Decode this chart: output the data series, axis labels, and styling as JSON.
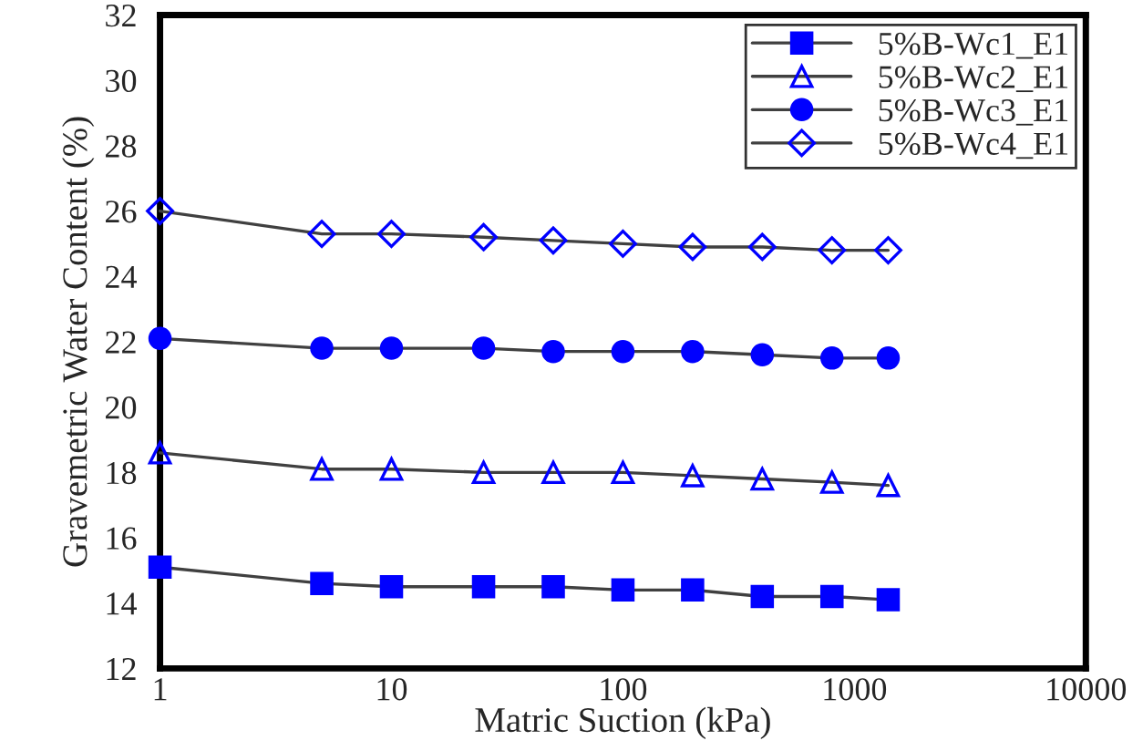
{
  "chart_data": {
    "type": "line",
    "xlabel": "Matric Suction (kPa)",
    "ylabel": "Gravemetric Water Content (%)",
    "log": "x",
    "xlim": [
      1,
      10000
    ],
    "xticks": [
      1,
      10,
      100,
      1000,
      10000
    ],
    "ylim": [
      12,
      32
    ],
    "yticks": [
      12,
      14,
      16,
      18,
      20,
      22,
      24,
      26,
      28,
      30,
      32
    ],
    "grid": false,
    "legend": "top right",
    "x": [
      1,
      5,
      10,
      25,
      50,
      100,
      200,
      400,
      800,
      1400
    ],
    "series": [
      {
        "name": "5%B-Wc1_E1",
        "color": "#0000ff",
        "marker": "square",
        "values": [
          15.1,
          14.6,
          14.5,
          14.5,
          14.5,
          14.4,
          14.4,
          14.2,
          14.2,
          14.1
        ]
      },
      {
        "name": "5%B-Wc2_E1",
        "color": "#0000ff",
        "marker": "triangle",
        "values": [
          18.6,
          18.1,
          18.1,
          18.0,
          18.0,
          18.0,
          17.9,
          17.8,
          17.7,
          17.6
        ]
      },
      {
        "name": "5%B-Wc3_E1",
        "color": "#0000ff",
        "marker": "circle",
        "values": [
          22.1,
          21.8,
          21.8,
          21.8,
          21.7,
          21.7,
          21.7,
          21.6,
          21.5,
          21.5
        ]
      },
      {
        "name": "5%B-Wc4_E1",
        "color": "#0000ff",
        "marker": "diamond",
        "values": [
          26.0,
          25.3,
          25.3,
          25.2,
          25.1,
          25.0,
          24.9,
          24.9,
          24.8,
          24.8
        ]
      }
    ]
  }
}
